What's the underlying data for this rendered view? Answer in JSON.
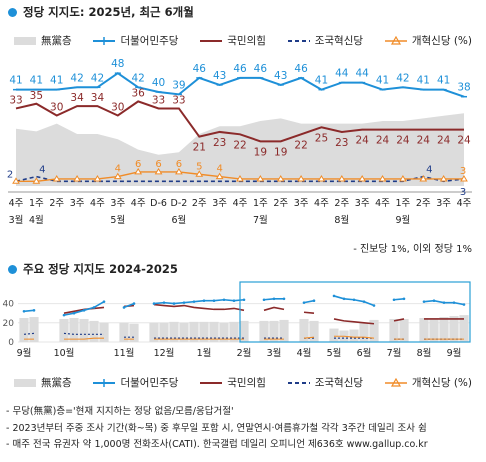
{
  "sections": {
    "top_title": "정당 지지도: 2025년, 최근 6개월",
    "bottom_title": "주요 정당 지지도 2024-2025",
    "note": "- 진보당 1%, 이외 정당 1%",
    "footnotes": [
      "- 무당(無黨)층='현재 지지하는 정당 없음/모름/응답거절'",
      "- 2023년부터 주중 조사 기간(화~목) 중 후무일 포함 시, 연말연시·여름휴가철 각각 3주간 데일리 조사 쉼",
      "- 매주 전국 유권자 약 1,000명 전화조사(CATI). 한국갤럽 데일리 오피니언 제636호 www.gallup.co.kr"
    ]
  },
  "colors": {
    "dem": "#1e90d8",
    "ppp": "#8b2a2a",
    "rebuild": "#1f3c88",
    "reform": "#f08c28",
    "none": "#dcdcdc",
    "highlight": "#2a9fd6"
  },
  "chart_data": [
    {
      "type": "line",
      "legend": [
        "無黨층",
        "더불어민주당",
        "국민의힘",
        "조국혁신당",
        "개혁신당 (%)"
      ],
      "week_labels": [
        "4주",
        "1주",
        "2주",
        "3주",
        "4주",
        "3주",
        "4주",
        "D-6",
        "D-2",
        "2주",
        "3주",
        "4주",
        "1주",
        "2주",
        "3주",
        "4주",
        "2주",
        "3주",
        "4주",
        "1주",
        "2주",
        "3주",
        "4주"
      ],
      "month_labels": [
        {
          "label": "3월",
          "at": 0
        },
        {
          "label": "4월",
          "at": 1
        },
        {
          "label": "5월",
          "at": 5
        },
        {
          "label": "6월",
          "at": 8
        },
        {
          "label": "7월",
          "at": 12
        },
        {
          "label": "8월",
          "at": 16
        },
        {
          "label": "9월",
          "at": 19
        }
      ],
      "series": [
        {
          "name": "더불어민주당",
          "key": "dem",
          "values": [
            41,
            41,
            41,
            42,
            42,
            48,
            42,
            40,
            39,
            46,
            43,
            46,
            46,
            43,
            46,
            41,
            44,
            44,
            41,
            42,
            41,
            41,
            38
          ]
        },
        {
          "name": "국민의힘",
          "key": "ppp",
          "values": [
            33,
            35,
            30,
            34,
            34,
            30,
            36,
            33,
            33,
            21,
            23,
            22,
            19,
            19,
            22,
            25,
            23,
            24,
            24,
            24,
            24,
            24,
            24
          ]
        },
        {
          "name": "조국혁신당",
          "key": "rebuild",
          "values": [
            2,
            4,
            2,
            2,
            2,
            2,
            2,
            2,
            2,
            2,
            2,
            2,
            2,
            2,
            2,
            2,
            2,
            2,
            2,
            2,
            4,
            2,
            3
          ]
        },
        {
          "name": "개혁신당",
          "key": "reform",
          "values": [
            2,
            2,
            3,
            3,
            3,
            4,
            6,
            6,
            6,
            5,
            4,
            3,
            3,
            3,
            3,
            3,
            3,
            3,
            3,
            3,
            3,
            3,
            3
          ]
        },
        {
          "name": "無黨층",
          "key": "none",
          "values": [
            22,
            21,
            24,
            20,
            20,
            18,
            14,
            12,
            13,
            20,
            23,
            23,
            25,
            26,
            24,
            24,
            24,
            24,
            25,
            25,
            26,
            27,
            28
          ]
        }
      ],
      "data_labels": {
        "dem": [
          41,
          41,
          41,
          42,
          42,
          48,
          42,
          40,
          39,
          46,
          43,
          46,
          46,
          43,
          46,
          41,
          44,
          44,
          41,
          42,
          41,
          41,
          38
        ],
        "ppp": [
          33,
          35,
          30,
          34,
          34,
          30,
          36,
          33,
          33,
          21,
          23,
          22,
          19,
          19,
          22,
          25,
          23,
          24,
          24,
          24,
          24,
          24,
          24
        ],
        "rebuild": [
          {
            "i": 0,
            "v": 2
          },
          {
            "i": 1,
            "v": 4
          },
          {
            "i": 20,
            "v": 4
          },
          {
            "i": 22,
            "v": 3
          }
        ],
        "reform": [
          {
            "i": 5,
            "v": 4
          },
          {
            "i": 6,
            "v": 6
          },
          {
            "i": 7,
            "v": 6
          },
          {
            "i": 8,
            "v": 6
          },
          {
            "i": 9,
            "v": 5
          },
          {
            "i": 10,
            "v": 4
          },
          {
            "i": 22,
            "v": 3
          }
        ]
      }
    },
    {
      "type": "line",
      "legend": [
        "無黨층",
        "더불어민주당",
        "국민의힘",
        "조국혁신당",
        "개혁신당 (%)"
      ],
      "y_ticks": [
        0,
        20,
        40
      ],
      "ylim": [
        0,
        50
      ],
      "month_labels": [
        "9월",
        "10월",
        "11월",
        "12월",
        "1월",
        "2월",
        "3월",
        "4월",
        "5월",
        "6월",
        "7월",
        "8월",
        "9월"
      ],
      "series": [
        {
          "name": "더불어민주당",
          "key": "dem",
          "values": [
            32,
            33,
            null,
            null,
            28,
            30,
            33,
            36,
            42,
            null,
            36,
            40,
            null,
            40,
            41,
            40,
            41,
            42,
            43,
            43,
            44,
            43,
            44,
            null,
            44,
            45,
            45,
            null,
            41,
            43,
            null,
            48,
            45,
            44,
            42,
            38,
            null,
            44,
            45,
            null,
            42,
            43,
            41,
            41,
            39
          ]
        },
        {
          "name": "국민의힘",
          "key": "ppp",
          "values": [
            null,
            null,
            null,
            null,
            30,
            32,
            34,
            35,
            36,
            null,
            37,
            38,
            null,
            39,
            38,
            37,
            38,
            36,
            35,
            34,
            34,
            35,
            33,
            null,
            33,
            36,
            34,
            null,
            31,
            30,
            null,
            24,
            22,
            21,
            20,
            19,
            null,
            22,
            24,
            null,
            24,
            24,
            24,
            24,
            24
          ]
        },
        {
          "name": "조국혁신당",
          "key": "rebuild",
          "values": [
            8,
            9,
            null,
            null,
            9,
            8,
            8,
            8,
            8,
            null,
            5,
            5,
            null,
            4,
            4,
            4,
            4,
            4,
            4,
            4,
            4,
            4,
            4,
            null,
            4,
            4,
            4,
            null,
            4,
            4,
            null,
            4,
            4,
            4,
            4,
            4,
            null,
            3,
            3,
            null,
            3,
            3,
            3,
            3,
            3
          ]
        },
        {
          "name": "개혁신당",
          "key": "reform",
          "values": [
            3,
            3,
            null,
            null,
            3,
            3,
            3,
            4,
            4,
            null,
            3,
            3,
            null,
            3,
            3,
            3,
            3,
            3,
            3,
            3,
            3,
            3,
            3,
            null,
            3,
            3,
            3,
            null,
            4,
            5,
            null,
            6,
            6,
            5,
            5,
            4,
            null,
            3,
            3,
            null,
            3,
            3,
            3,
            3,
            3
          ]
        },
        {
          "name": "無黨층",
          "key": "none",
          "values": [
            25,
            26,
            null,
            null,
            24,
            25,
            24,
            22,
            20,
            null,
            20,
            19,
            null,
            20,
            20,
            21,
            20,
            21,
            21,
            21,
            20,
            21,
            22,
            null,
            22,
            22,
            23,
            null,
            24,
            22,
            null,
            14,
            12,
            13,
            20,
            23,
            null,
            24,
            24,
            null,
            25,
            25,
            26,
            27,
            28
          ]
        }
      ]
    }
  ]
}
